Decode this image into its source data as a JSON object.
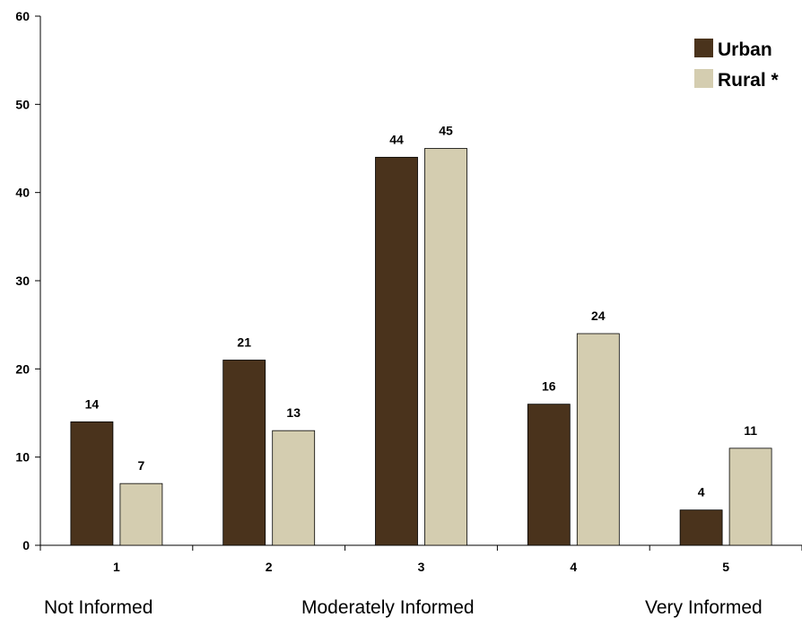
{
  "chart_data": {
    "type": "bar",
    "categories": [
      "1",
      "2",
      "3",
      "4",
      "5"
    ],
    "series": [
      {
        "name": "Urban",
        "values": [
          14,
          21,
          44,
          16,
          4
        ],
        "color": "#4a331c"
      },
      {
        "name": "Rural *",
        "values": [
          7,
          13,
          45,
          24,
          11
        ],
        "color": "#d4cdb0"
      }
    ],
    "ylim": [
      0,
      60
    ],
    "yticks": [
      0,
      10,
      20,
      30,
      40,
      50,
      60
    ],
    "legend_position": "top-right",
    "grid": false
  },
  "scale_labels": {
    "left": "Not Informed",
    "middle": "Moderately Informed",
    "right": "Very Informed"
  }
}
